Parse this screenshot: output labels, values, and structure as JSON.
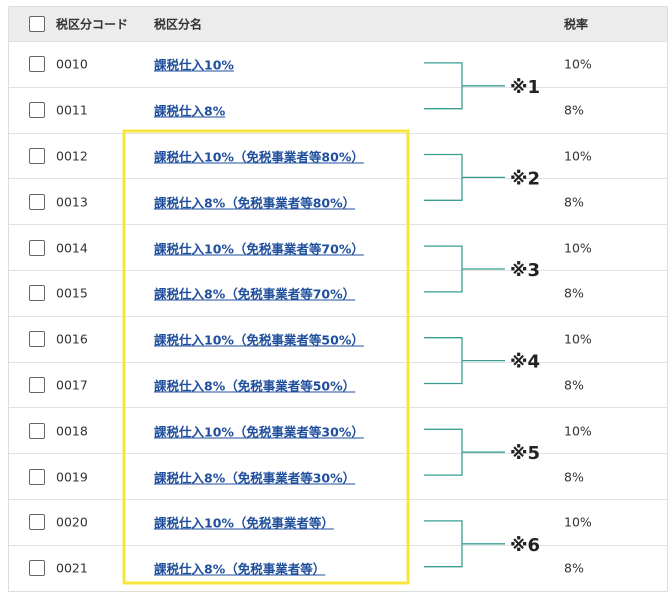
{
  "table": {
    "header": {
      "code": "税区分コード",
      "name": "税区分名",
      "rate": "税率"
    },
    "rows": [
      {
        "code": "0010",
        "name": "課税仕入10%",
        "rate": "10%"
      },
      {
        "code": "0011",
        "name": "課税仕入8%",
        "rate": "8%"
      },
      {
        "code": "0012",
        "name": "課税仕入10%（免税事業者等80%）",
        "rate": "10%"
      },
      {
        "code": "0013",
        "name": "課税仕入8%（免税事業者等80%）",
        "rate": "8%"
      },
      {
        "code": "0014",
        "name": "課税仕入10%（免税事業者等70%）",
        "rate": "10%"
      },
      {
        "code": "0015",
        "name": "課税仕入8%（免税事業者等70%）",
        "rate": "8%"
      },
      {
        "code": "0016",
        "name": "課税仕入10%（免税事業者等50%）",
        "rate": "10%"
      },
      {
        "code": "0017",
        "name": "課税仕入8%（免税事業者等50%）",
        "rate": "8%"
      },
      {
        "code": "0018",
        "name": "課税仕入10%（免税事業者等30%）",
        "rate": "10%"
      },
      {
        "code": "0019",
        "name": "課税仕入8%（免税事業者等30%）",
        "rate": "8%"
      },
      {
        "code": "0020",
        "name": "課税仕入10%（免税事業者等）",
        "rate": "10%"
      },
      {
        "code": "0021",
        "name": "課税仕入8%（免税事業者等）",
        "rate": "8%"
      }
    ]
  },
  "annotations": [
    "※1",
    "※2",
    "※3",
    "※4",
    "※5",
    "※6"
  ]
}
